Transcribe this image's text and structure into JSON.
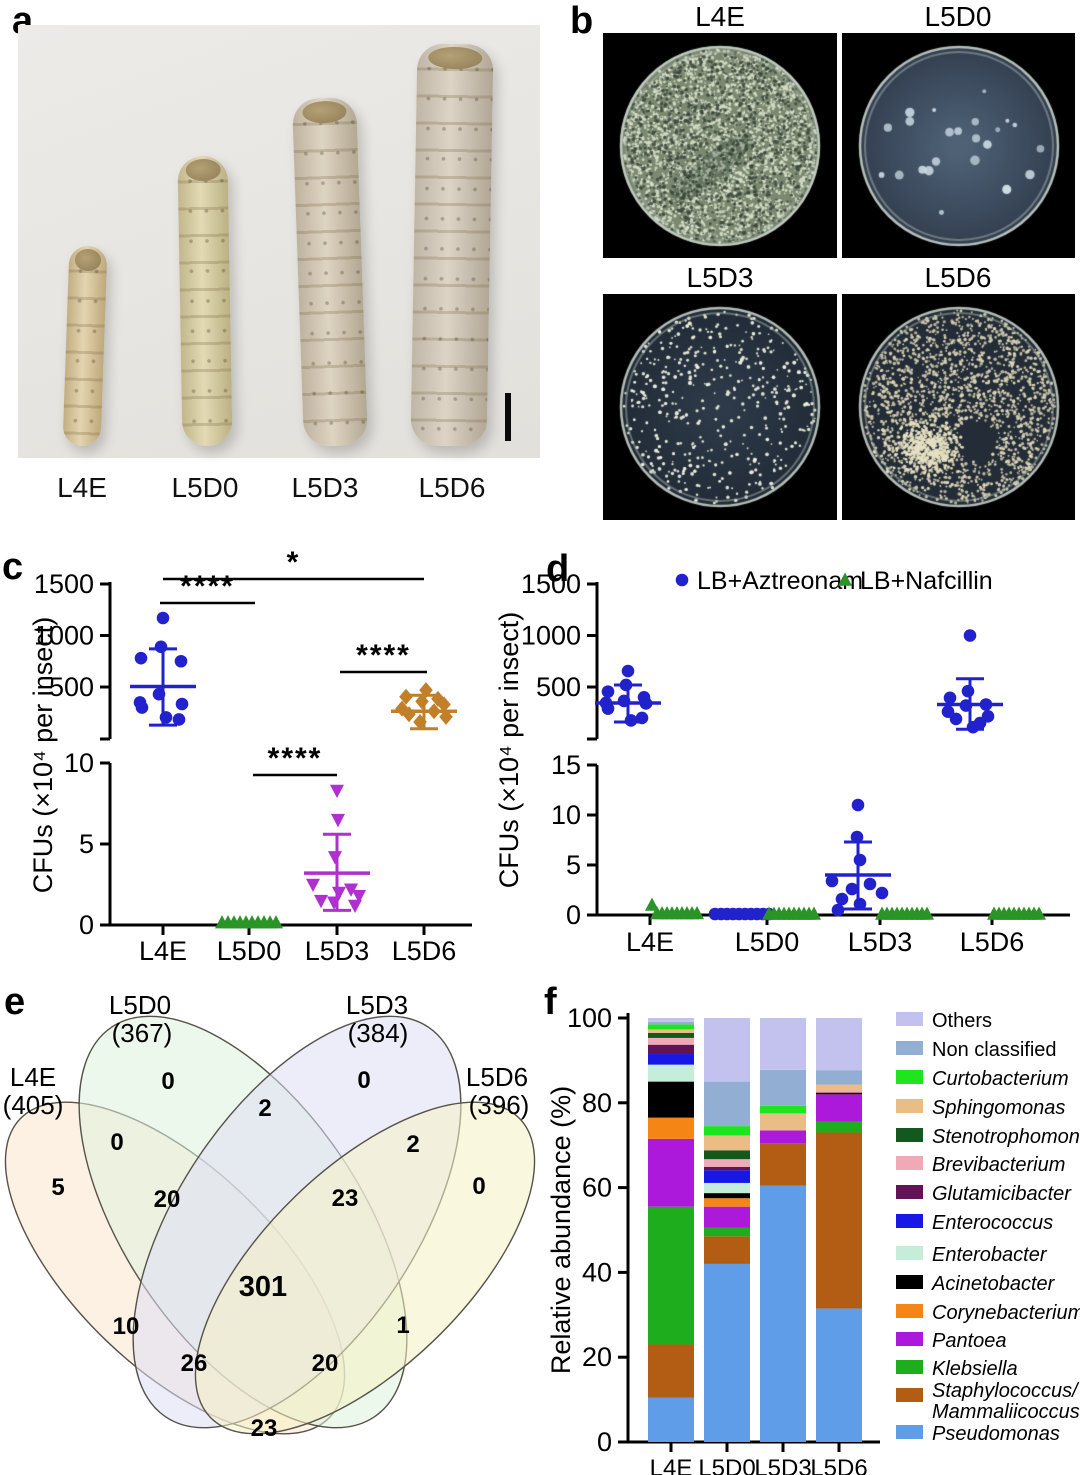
{
  "panels": {
    "a": {
      "letter": "a",
      "type": "specimen-photo",
      "specimen_labels": [
        "L4E",
        "L5D0",
        "L5D3",
        "L5D6"
      ]
    },
    "b": {
      "letter": "b",
      "type": "petri-dish-photos",
      "dishes": [
        {
          "label": "L4E",
          "colony_density": "confluent mottled lawn"
        },
        {
          "label": "L5D0",
          "colony_density": "sparse colonies"
        },
        {
          "label": "L5D3",
          "colony_density": "moderate scattered colonies"
        },
        {
          "label": "L5D6",
          "colony_density": "dense colonies"
        }
      ]
    },
    "c": {
      "letter": "c"
    },
    "d": {
      "letter": "d"
    },
    "e": {
      "letter": "e"
    },
    "f": {
      "letter": "f"
    }
  },
  "chart_data": [
    {
      "id": "c",
      "type": "scatter",
      "ylabel": "CFUs (×10⁴ per insect)",
      "categories": [
        "L4E",
        "L5D0",
        "L5D3",
        "L5D6"
      ],
      "y_axis_break": {
        "upper_range": [
          0,
          1500
        ],
        "upper_ticks": [
          500,
          1000,
          1500
        ],
        "lower_range": [
          0,
          10
        ],
        "lower_ticks": [
          0,
          5,
          10
        ]
      },
      "groups": [
        {
          "category": "L4E",
          "marker": "circle",
          "color": "#2222cd",
          "axis": "upper",
          "values": [
            1170,
            890,
            780,
            750,
            430,
            350,
            335,
            300,
            205,
            185
          ],
          "mean": 505,
          "err_high": 870,
          "err_low": 130
        },
        {
          "category": "L5D0",
          "marker": "triangle-up",
          "color": "#2a9427",
          "axis": "lower",
          "values": [
            0.15,
            0.15,
            0.15,
            0.15,
            0.15,
            0.15,
            0.15,
            0.15,
            0.15,
            0.15
          ]
        },
        {
          "category": "L5D3",
          "marker": "triangle-down",
          "color": "#b02fd0",
          "axis": "lower",
          "values": [
            8.3,
            6.5,
            4.2,
            2.5,
            2.2,
            2.0,
            1.8,
            1.5,
            1.4,
            1.2
          ],
          "mean": 3.2,
          "err_high": 5.6,
          "err_low": 0.9
        },
        {
          "category": "L5D6",
          "marker": "diamond",
          "color": "#c17f2a",
          "axis": "upper",
          "values": [
            470,
            405,
            385,
            360,
            330,
            290,
            265,
            235,
            210,
            160
          ],
          "mean": 265,
          "err_high": 420,
          "err_low": 95
        }
      ],
      "significance": [
        {
          "groups": [
            "L4E",
            "L5D6"
          ],
          "label": "*"
        },
        {
          "groups": [
            "L4E",
            "L5D0"
          ],
          "label": "****"
        },
        {
          "groups": [
            "L5D3",
            "L5D6"
          ],
          "label": "****"
        },
        {
          "groups": [
            "L5D0",
            "L5D3"
          ],
          "label": "****"
        }
      ]
    },
    {
      "id": "d",
      "type": "scatter",
      "ylabel": "CFUs (×10⁴ per insect)",
      "categories": [
        "L4E",
        "L5D0",
        "L5D3",
        "L5D6"
      ],
      "legend": [
        {
          "label": "LB+Aztreonam",
          "marker": "circle",
          "color": "#2222cd"
        },
        {
          "label": "LB+Nafcillin",
          "marker": "triangle-up",
          "color": "#2a9427"
        }
      ],
      "y_axis_break": {
        "upper_range": [
          0,
          1500
        ],
        "upper_ticks": [
          500,
          1000,
          1500
        ],
        "lower_range": [
          0,
          15
        ],
        "lower_ticks": [
          0,
          5,
          10,
          15
        ]
      },
      "groups": [
        {
          "category": "L4E",
          "series": "LB+Aztreonam",
          "marker": "circle",
          "color": "#2222cd",
          "axis": "upper",
          "values": [
            655,
            520,
            455,
            400,
            365,
            345,
            340,
            290,
            200,
            175
          ],
          "mean": 345,
          "err_high": 520,
          "err_low": 160
        },
        {
          "category": "L4E",
          "series": "LB+Nafcillin",
          "marker": "triangle-up",
          "color": "#2a9427",
          "axis": "lower",
          "values": [
            1.0,
            0.15,
            0.15,
            0.15,
            0.15,
            0.15,
            0.15,
            0.15,
            0.15,
            0.15
          ]
        },
        {
          "category": "L5D0",
          "series": "LB+Aztreonam",
          "marker": "circle",
          "color": "#2222cd",
          "axis": "lower",
          "values": [
            0.1,
            0.1,
            0.1,
            0.1,
            0.1,
            0.1,
            0.1,
            0.1,
            0.1,
            0.1
          ]
        },
        {
          "category": "L5D0",
          "series": "LB+Nafcillin",
          "marker": "triangle-up",
          "color": "#2a9427",
          "axis": "lower",
          "values": [
            0.1,
            0.1,
            0.1,
            0.1,
            0.1,
            0.1,
            0.1,
            0.1,
            0.1,
            0.1
          ]
        },
        {
          "category": "L5D3",
          "series": "LB+Aztreonam",
          "marker": "circle",
          "color": "#2222cd",
          "axis": "lower",
          "values": [
            11,
            7.8,
            5.5,
            3.4,
            3.1,
            2.6,
            2.2,
            1.6,
            1.1,
            0.5
          ],
          "mean": 4.0,
          "err_high": 7.3,
          "err_low": 0.6
        },
        {
          "category": "L5D3",
          "series": "LB+Nafcillin",
          "marker": "triangle-up",
          "color": "#2a9427",
          "axis": "lower",
          "values": [
            0.1,
            0.1,
            0.1,
            0.1,
            0.1,
            0.1,
            0.1,
            0.1,
            0.1,
            0.1
          ]
        },
        {
          "category": "L5D6",
          "series": "LB+Aztreonam",
          "marker": "circle",
          "color": "#2222cd",
          "axis": "upper",
          "values": [
            1000,
            460,
            395,
            330,
            320,
            260,
            215,
            190,
            150,
            110
          ],
          "mean": 330,
          "err_high": 580,
          "err_low": 90
        },
        {
          "category": "L5D6",
          "series": "LB+Nafcillin",
          "marker": "triangle-up",
          "color": "#2a9427",
          "axis": "lower",
          "values": [
            0.1,
            0.1,
            0.1,
            0.1,
            0.1,
            0.1,
            0.1,
            0.1,
            0.1,
            0.1
          ]
        }
      ]
    },
    {
      "id": "e",
      "type": "venn",
      "sets": [
        {
          "name": "L4E",
          "total": 405,
          "fill": "#fbe5cc"
        },
        {
          "name": "L5D0",
          "total": 367,
          "fill": "#dff2dc"
        },
        {
          "name": "L5D3",
          "total": 384,
          "fill": "#dfdff6"
        },
        {
          "name": "L5D6",
          "total": 396,
          "fill": "#f6f0c4"
        }
      ],
      "regions": [
        {
          "sets": [
            "L5D0"
          ],
          "value": 0
        },
        {
          "sets": [
            "L5D0",
            "L5D3"
          ],
          "value": 2
        },
        {
          "sets": [
            "L5D3"
          ],
          "value": 0
        },
        {
          "sets": [
            "L4E",
            "L5D0"
          ],
          "value": 0
        },
        {
          "sets": [
            "L5D3",
            "L5D6"
          ],
          "value": 2
        },
        {
          "sets": [
            "L4E"
          ],
          "value": 5
        },
        {
          "sets": [
            "L5D6"
          ],
          "value": 0
        },
        {
          "sets": [
            "L4E",
            "L5D0",
            "L5D3"
          ],
          "value": 20
        },
        {
          "sets": [
            "L5D0",
            "L5D3",
            "L5D6"
          ],
          "value": 23
        },
        {
          "sets": [
            "L4E",
            "L5D0",
            "L5D3",
            "L5D6"
          ],
          "value": 301
        },
        {
          "sets": [
            "L4E",
            "L5D3"
          ],
          "value": 10
        },
        {
          "sets": [
            "L5D0",
            "L5D6"
          ],
          "value": 1
        },
        {
          "sets": [
            "L4E",
            "L5D3",
            "L5D6"
          ],
          "value": 26
        },
        {
          "sets": [
            "L4E",
            "L5D0",
            "L5D6"
          ],
          "value": 20
        },
        {
          "sets": [
            "L4E",
            "L5D6"
          ],
          "value": 23
        }
      ]
    },
    {
      "id": "f",
      "type": "bar",
      "stacked": true,
      "ylabel": "Relative abundance (%)",
      "ylim": [
        0,
        100
      ],
      "yticks": [
        0,
        20,
        40,
        60,
        80,
        100
      ],
      "categories": [
        "L4E",
        "L5D0",
        "L5D3",
        "L5D6"
      ],
      "series": [
        {
          "name": "Pseudomonas",
          "color": "#5f9de9",
          "italic": true,
          "values": [
            10.5,
            42,
            60.5,
            31.5
          ]
        },
        {
          "name": "Staphylococcus/Mammaliicoccus",
          "color": "#b25d13",
          "italic": true,
          "values": [
            12.5,
            6.5,
            10,
            41.5
          ]
        },
        {
          "name": "Klebsiella",
          "color": "#1dad1d",
          "italic": true,
          "values": [
            32.5,
            2,
            0,
            2.5
          ]
        },
        {
          "name": "Pantoea",
          "color": "#ad19da",
          "italic": true,
          "values": [
            16,
            5,
            3,
            6.5
          ]
        },
        {
          "name": "Corynebacterium",
          "color": "#f58616",
          "italic": true,
          "values": [
            5,
            2,
            0,
            0
          ]
        },
        {
          "name": "Acinetobacter",
          "color": "#000000",
          "italic": true,
          "values": [
            8.5,
            1.2,
            0,
            0.4
          ]
        },
        {
          "name": "Enterobacter",
          "color": "#c4edda",
          "italic": true,
          "values": [
            4,
            2.4,
            0,
            0
          ]
        },
        {
          "name": "Enterococcus",
          "color": "#1717e6",
          "italic": true,
          "values": [
            2.5,
            3,
            0,
            0
          ]
        },
        {
          "name": "Glutamicibacter",
          "color": "#611356",
          "italic": true,
          "values": [
            2.2,
            0.8,
            0,
            0
          ]
        },
        {
          "name": "Brevibacterium",
          "color": "#f0a9b6",
          "italic": true,
          "values": [
            1.6,
            1.8,
            0,
            0.5
          ]
        },
        {
          "name": "Stenotrophomonas",
          "color": "#14581d",
          "italic": true,
          "values": [
            1.2,
            2.1,
            0,
            0
          ]
        },
        {
          "name": "Sphingomonas",
          "color": "#eabd85",
          "italic": true,
          "values": [
            0.8,
            3.5,
            4,
            1.4
          ]
        },
        {
          "name": "Curtobacterium",
          "color": "#1ee51e",
          "italic": true,
          "values": [
            1.2,
            2.2,
            1.8,
            0
          ]
        },
        {
          "name": "Non classified",
          "color": "#93aed3",
          "italic": false,
          "values": [
            0.6,
            10.5,
            8.5,
            3.4
          ]
        },
        {
          "name": "Others",
          "color": "#c3c2ef",
          "italic": false,
          "values": [
            0.9,
            15,
            12.2,
            12.3
          ]
        }
      ]
    }
  ]
}
